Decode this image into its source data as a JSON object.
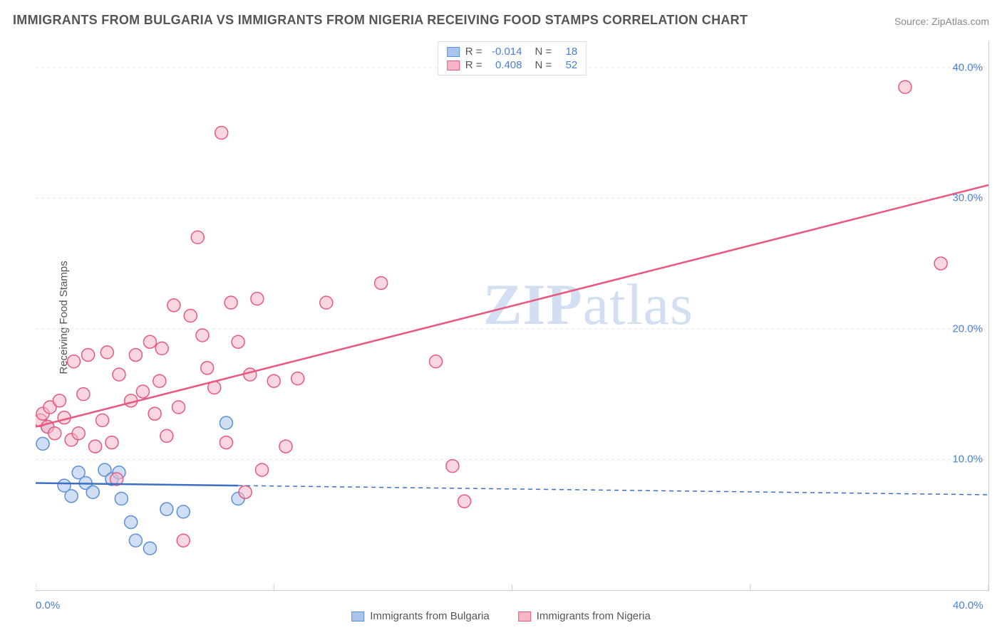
{
  "title": "IMMIGRANTS FROM BULGARIA VS IMMIGRANTS FROM NIGERIA RECEIVING FOOD STAMPS CORRELATION CHART",
  "source": "Source: ZipAtlas.com",
  "yaxis_label": "Receiving Food Stamps",
  "watermark_bold": "ZIP",
  "watermark_rest": "atlas",
  "chart": {
    "type": "scatter",
    "xlim": [
      0,
      40
    ],
    "ylim": [
      0,
      42
    ],
    "xticks": [
      0,
      40
    ],
    "xtick_labels": [
      "0.0%",
      "40.0%"
    ],
    "yticks": [
      10,
      20,
      30,
      40
    ],
    "ytick_labels": [
      "10.0%",
      "20.0%",
      "30.0%",
      "40.0%"
    ],
    "x_grid_positions": [
      0,
      10,
      20,
      30,
      40
    ],
    "background_color": "#ffffff",
    "grid_color": "#e6e6e6",
    "axis_color": "#cccccc",
    "marker_radius": 9,
    "marker_stroke_width": 1.5,
    "line_width": 2.5,
    "series": [
      {
        "id": "bulgaria",
        "label": "Immigrants from Bulgaria",
        "fill_color": "#a9c5ec",
        "stroke_color": "#5b8fd6",
        "fill_opacity": 0.55,
        "line_color": "#3e6fc2",
        "R": "-0.014",
        "N": "18",
        "points": [
          [
            0.3,
            11.2
          ],
          [
            0.5,
            12.5
          ],
          [
            1.2,
            8.0
          ],
          [
            1.5,
            7.2
          ],
          [
            1.8,
            9.0
          ],
          [
            2.1,
            8.2
          ],
          [
            2.4,
            7.5
          ],
          [
            2.9,
            9.2
          ],
          [
            3.2,
            8.5
          ],
          [
            3.5,
            9.0
          ],
          [
            3.6,
            7.0
          ],
          [
            4.0,
            5.2
          ],
          [
            4.2,
            3.8
          ],
          [
            4.8,
            3.2
          ],
          [
            5.5,
            6.2
          ],
          [
            6.2,
            6.0
          ],
          [
            8.0,
            12.8
          ],
          [
            8.5,
            7.0
          ]
        ],
        "trend": {
          "x1": 0,
          "y1": 8.2,
          "x2": 8.5,
          "y2": 8.0
        },
        "extrap": {
          "x1": 8.5,
          "y1": 8.0,
          "x2": 40,
          "y2": 7.3
        }
      },
      {
        "id": "nigeria",
        "label": "Immigrants from Nigeria",
        "fill_color": "#f5b6c6",
        "stroke_color": "#e8587f",
        "fill_opacity": 0.55,
        "line_color": "#e8587f",
        "R": "0.408",
        "N": "52",
        "points": [
          [
            0.2,
            13.0
          ],
          [
            0.3,
            13.5
          ],
          [
            0.5,
            12.5
          ],
          [
            0.6,
            14.0
          ],
          [
            0.8,
            12.0
          ],
          [
            1.0,
            14.5
          ],
          [
            1.2,
            13.2
          ],
          [
            1.5,
            11.5
          ],
          [
            1.6,
            17.5
          ],
          [
            1.8,
            12.0
          ],
          [
            2.0,
            15.0
          ],
          [
            2.2,
            18.0
          ],
          [
            2.5,
            11.0
          ],
          [
            2.8,
            13.0
          ],
          [
            3.0,
            18.2
          ],
          [
            3.2,
            11.3
          ],
          [
            3.4,
            8.5
          ],
          [
            3.5,
            16.5
          ],
          [
            4.0,
            14.5
          ],
          [
            4.2,
            18.0
          ],
          [
            4.5,
            15.2
          ],
          [
            4.8,
            19.0
          ],
          [
            5.0,
            13.5
          ],
          [
            5.2,
            16.0
          ],
          [
            5.3,
            18.5
          ],
          [
            5.5,
            11.8
          ],
          [
            5.8,
            21.8
          ],
          [
            6.0,
            14.0
          ],
          [
            6.2,
            3.8
          ],
          [
            6.5,
            21.0
          ],
          [
            6.8,
            27.0
          ],
          [
            7.0,
            19.5
          ],
          [
            7.2,
            17.0
          ],
          [
            7.5,
            15.5
          ],
          [
            7.8,
            35.0
          ],
          [
            8.0,
            11.3
          ],
          [
            8.2,
            22.0
          ],
          [
            8.5,
            19.0
          ],
          [
            8.8,
            7.5
          ],
          [
            9.0,
            16.5
          ],
          [
            9.3,
            22.3
          ],
          [
            9.5,
            9.2
          ],
          [
            10.0,
            16.0
          ],
          [
            10.5,
            11.0
          ],
          [
            11.0,
            16.2
          ],
          [
            12.2,
            22.0
          ],
          [
            14.5,
            23.5
          ],
          [
            16.8,
            17.5
          ],
          [
            17.5,
            9.5
          ],
          [
            18.0,
            6.8
          ],
          [
            36.5,
            38.5
          ],
          [
            38.0,
            25.0
          ]
        ],
        "trend": {
          "x1": 0,
          "y1": 12.5,
          "x2": 40,
          "y2": 31.0
        }
      }
    ]
  },
  "stat_panel": {
    "r_label": "R =",
    "n_label": "N ="
  },
  "x_legend": [
    {
      "swatch_fill": "#a9c5ec",
      "swatch_stroke": "#5b8fd6",
      "label": "Immigrants from Bulgaria"
    },
    {
      "swatch_fill": "#f5b6c6",
      "swatch_stroke": "#e8587f",
      "label": "Immigrants from Nigeria"
    }
  ]
}
